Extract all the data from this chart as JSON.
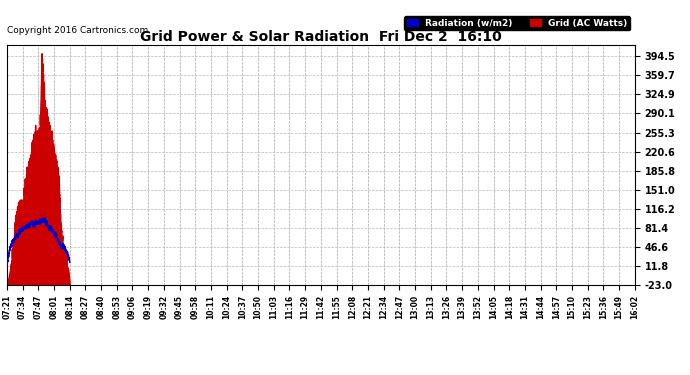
{
  "title": "Grid Power & Solar Radiation  Fri Dec 2  16:10",
  "copyright": "Copyright 2016 Cartronics.com",
  "legend_radiation": "Radiation (w/m2)",
  "legend_grid": "Grid (AC Watts)",
  "yticks": [
    394.5,
    359.7,
    324.9,
    290.1,
    255.3,
    220.6,
    185.8,
    151.0,
    116.2,
    81.4,
    46.6,
    11.8,
    -23.0
  ],
  "ymin": -23.0,
  "ymax": 415.0,
  "background_color": "#ffffff",
  "plot_bg_color": "#ffffff",
  "grid_color": "#bbbbbb",
  "fill_color": "#cc0000",
  "line_color": "#0000cc",
  "x_labels": [
    "07:21",
    "07:34",
    "07:47",
    "08:01",
    "08:14",
    "08:27",
    "08:40",
    "08:53",
    "09:06",
    "09:19",
    "09:32",
    "09:45",
    "09:58",
    "10:11",
    "10:24",
    "10:37",
    "10:50",
    "11:03",
    "11:16",
    "11:29",
    "11:42",
    "11:55",
    "12:08",
    "12:21",
    "12:34",
    "12:47",
    "13:00",
    "13:13",
    "13:26",
    "13:39",
    "13:52",
    "14:05",
    "14:18",
    "14:31",
    "14:44",
    "14:57",
    "15:10",
    "15:23",
    "15:36",
    "15:49",
    "16:02"
  ],
  "grid_watts": [
    -23,
    -10,
    5,
    25,
    55,
    90,
    105,
    115,
    120,
    125,
    130,
    145,
    165,
    185,
    195,
    210,
    230,
    240,
    248,
    252,
    255,
    258,
    395,
    355,
    300,
    285,
    270,
    258,
    248,
    235,
    215,
    200,
    185,
    160,
    95,
    60,
    38,
    22,
    12,
    5,
    -23
  ],
  "radiation": [
    11,
    30,
    42,
    52,
    58,
    62,
    66,
    69,
    72,
    76,
    79,
    82,
    84,
    86,
    87,
    88,
    89,
    88,
    89,
    90,
    91,
    92,
    93,
    95,
    97,
    90,
    85,
    82,
    80,
    76,
    72,
    68,
    62,
    56,
    50,
    48,
    45,
    42,
    38,
    32,
    18
  ]
}
